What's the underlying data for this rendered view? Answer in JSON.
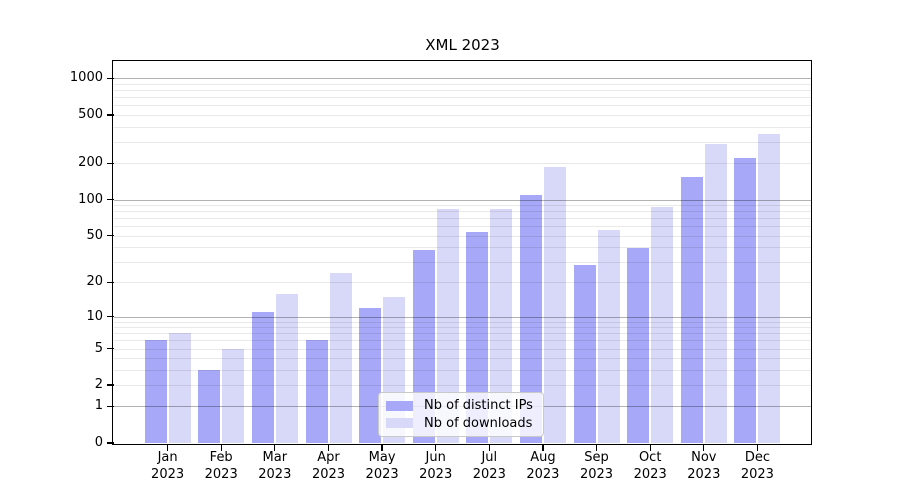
{
  "chart_data": {
    "type": "bar",
    "title": "XML 2023",
    "categories": [
      "Jan 2023",
      "Feb 2023",
      "Mar 2023",
      "Apr 2023",
      "May 2023",
      "Jun 2023",
      "Jul 2023",
      "Aug 2023",
      "Sep 2023",
      "Oct 2023",
      "Nov 2023",
      "Dec 2023"
    ],
    "months": [
      "Jan",
      "Feb",
      "Mar",
      "Apr",
      "May",
      "Jun",
      "Jul",
      "Aug",
      "Sep",
      "Oct",
      "Nov",
      "Dec"
    ],
    "year_label": "2023",
    "series": [
      {
        "name": "Nb of distinct IPs",
        "color": "#a8a8f8",
        "values": [
          6,
          3,
          11,
          6,
          12,
          38,
          54,
          110,
          28,
          39,
          155,
          220
        ]
      },
      {
        "name": "Nb of downloads",
        "color": "#d8d8f8",
        "values": [
          7,
          5,
          16,
          24,
          15,
          84,
          83,
          185,
          56,
          87,
          290,
          350
        ]
      }
    ],
    "xlabel": "",
    "ylabel": "",
    "yscale": "log1p",
    "ylim": [
      0,
      1390
    ],
    "y_ticks": [
      0,
      1,
      2,
      5,
      10,
      20,
      50,
      100,
      200,
      500,
      1000
    ],
    "grid": "horizontal major and minor log gridlines drawn over bars, no vertical grid",
    "legend_position": "inside plot, lower center"
  },
  "colors": {
    "background": "#ffffff",
    "bar_distinct_ips": "#a8a8f8",
    "bar_downloads": "#d8d8f8",
    "spine": "#000000",
    "gridline_major": "rgba(0,0,0,0.30)",
    "gridline_minor": "rgba(0,0,0,0.085)",
    "legend_border": "#c9c9c9",
    "legend_background": "rgba(255,255,255,0.8)",
    "text": "#000000"
  }
}
